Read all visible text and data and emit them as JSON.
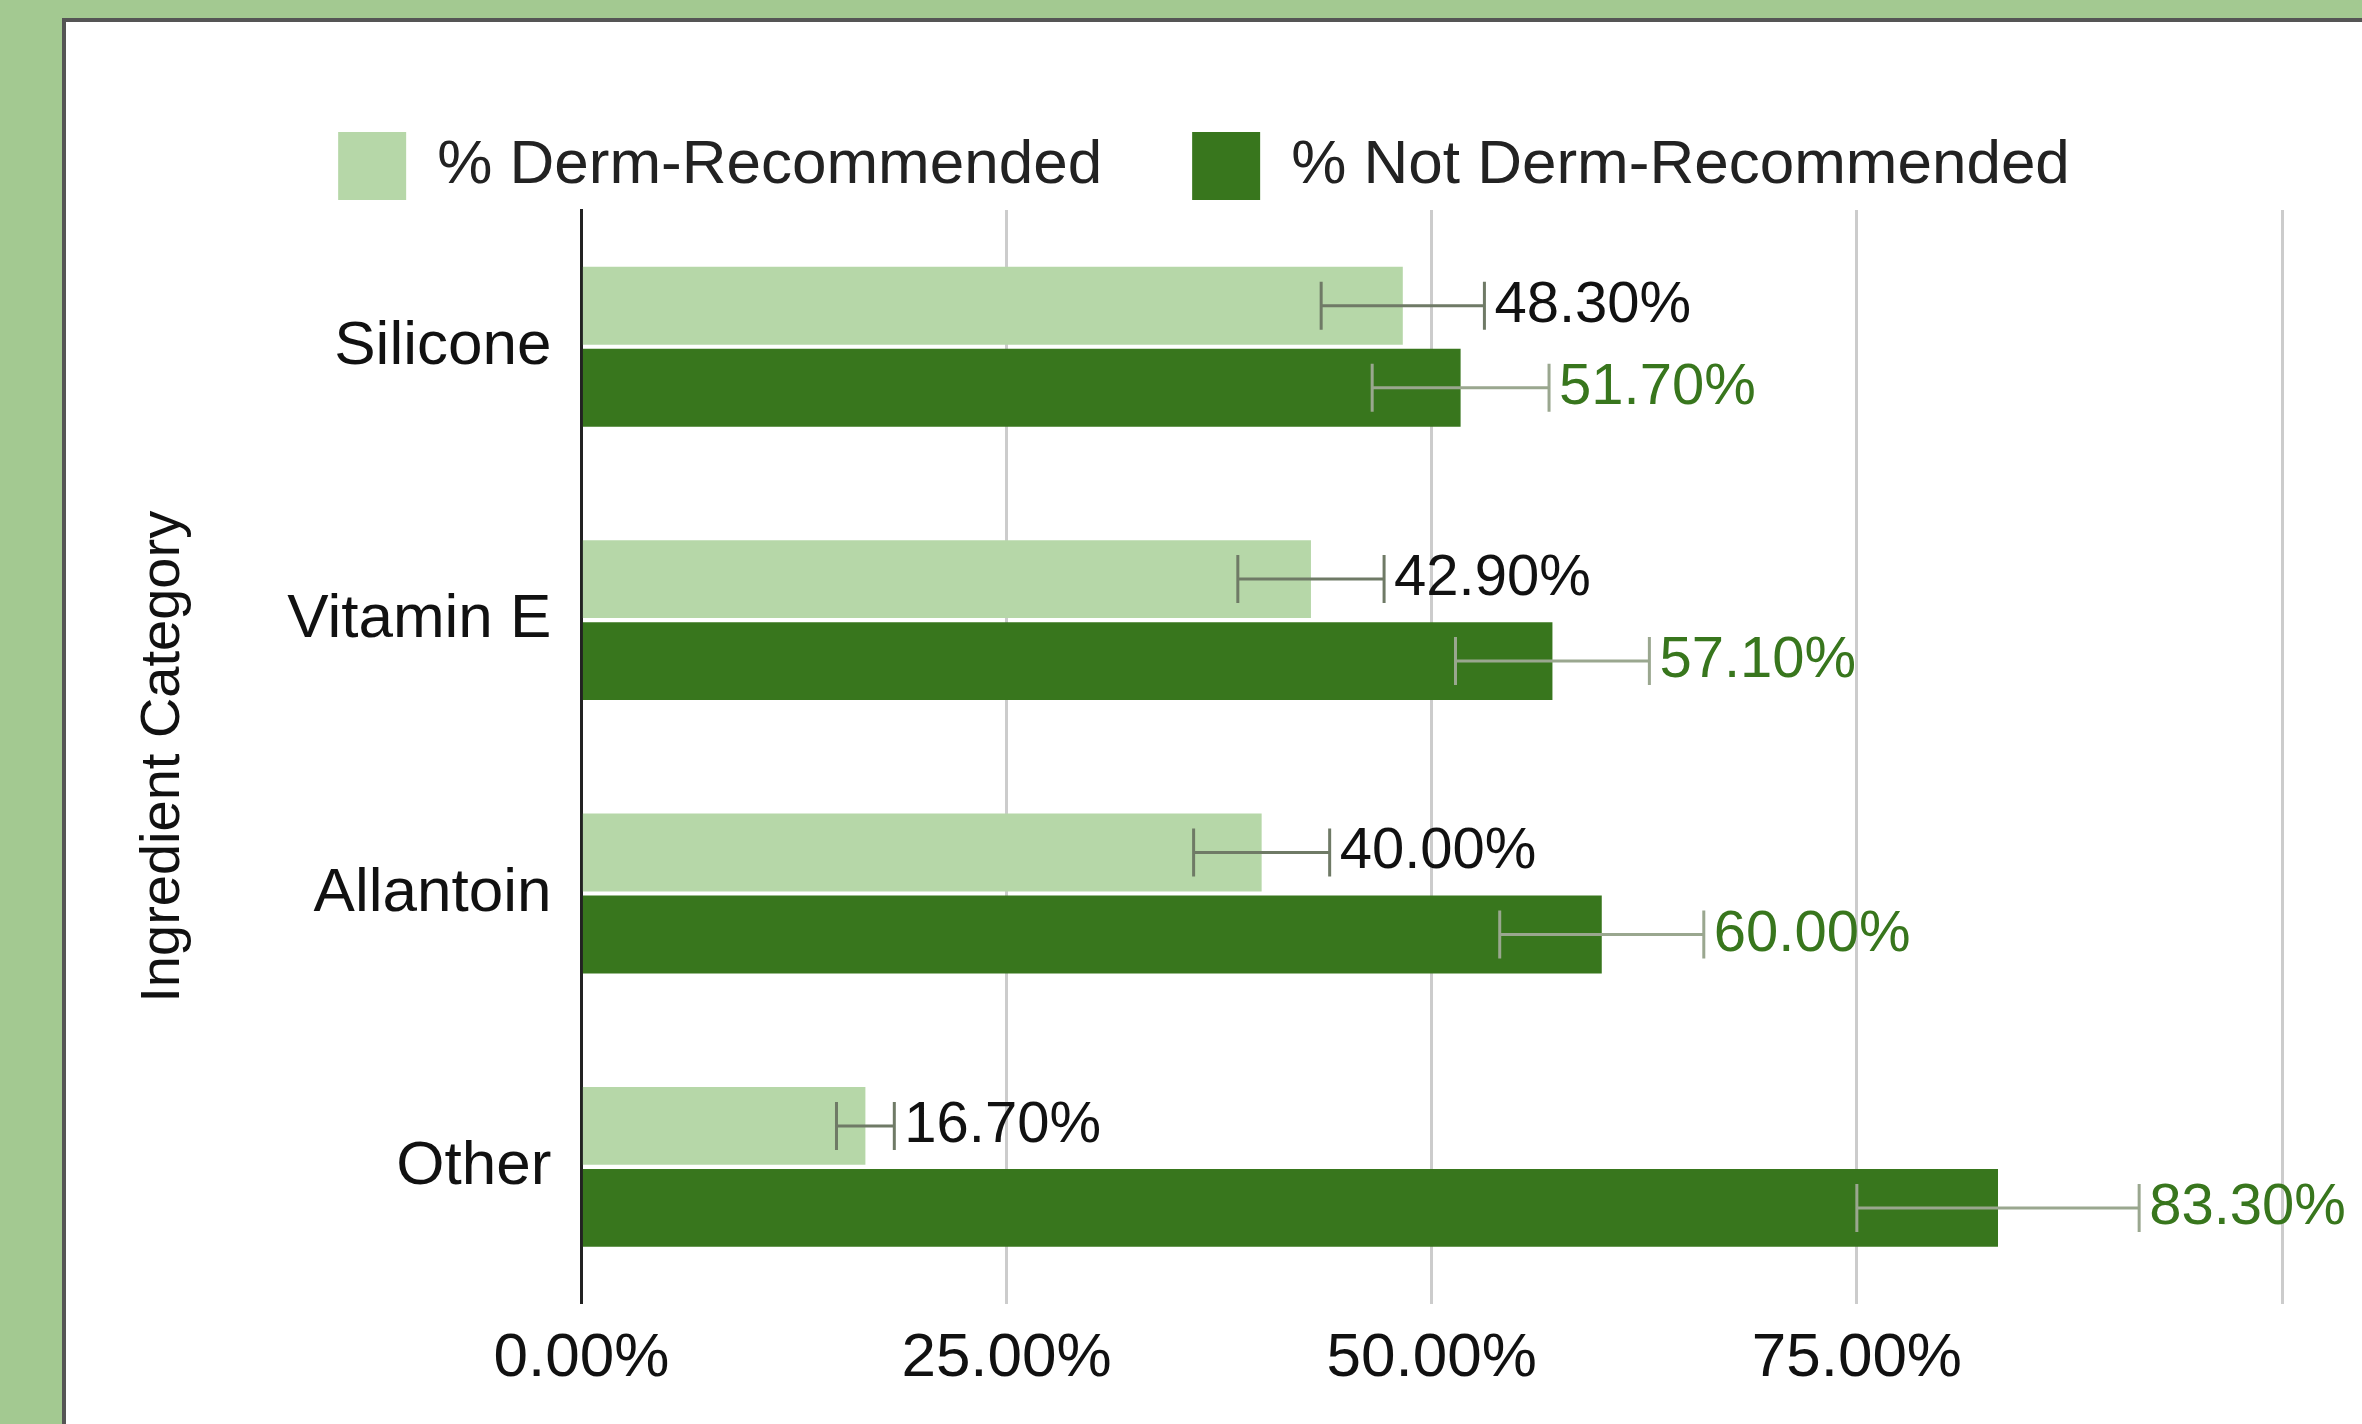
{
  "chart_data": {
    "type": "bar",
    "orientation": "horizontal",
    "ylabel": "Ingredient Category",
    "categories": [
      "Silicone",
      "Vitamin E",
      "Allantoin",
      "Other"
    ],
    "series": [
      {
        "name": "% Derm-Recommended",
        "color": "#b6d7a8",
        "values": [
          48.3,
          42.9,
          40,
          16.7
        ],
        "errors": [
          4.8,
          4.3,
          4,
          1.7
        ],
        "value_labels": [
          "48.30%",
          "42.90%",
          "40.00%",
          "16.70%"
        ]
      },
      {
        "name": "% Not Derm-Recommended",
        "color": "#38761d",
        "values": [
          51.7,
          57.1,
          60,
          83.3
        ],
        "errors": [
          5.2,
          5.7,
          6,
          8.3
        ],
        "value_labels": [
          "51.70%",
          "57.10%",
          "60.00%",
          "83.30%"
        ]
      }
    ],
    "xlim": [
      0,
      100
    ],
    "xticks": [
      {
        "value": 0,
        "label": "0.00%"
      },
      {
        "value": 25,
        "label": "25.00%"
      },
      {
        "value": 50,
        "label": "50.00%"
      },
      {
        "value": 75,
        "label": "75.00%"
      },
      {
        "value": 100,
        "label": null
      }
    ],
    "grid": "x",
    "legend": "top"
  }
}
